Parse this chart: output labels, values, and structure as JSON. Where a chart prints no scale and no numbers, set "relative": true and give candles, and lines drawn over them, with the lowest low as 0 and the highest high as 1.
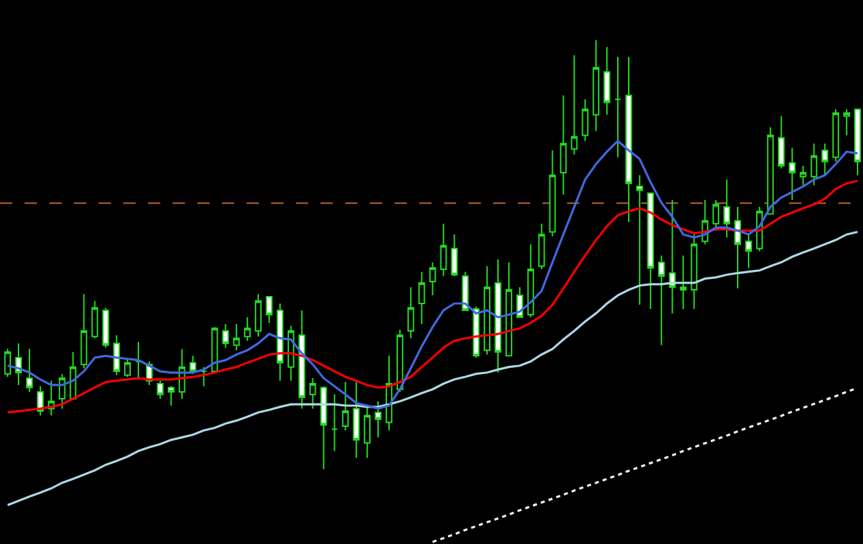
{
  "chart_data": {
    "type": "candlestick",
    "relative": true,
    "color": "#22dd22",
    "categories": [
      null,
      null,
      null,
      null,
      null,
      null,
      null,
      null,
      null,
      null,
      null,
      null,
      null,
      null,
      null,
      null,
      null,
      null,
      null,
      null,
      null,
      null,
      null,
      null,
      null,
      null,
      null,
      null,
      null,
      null,
      null,
      null,
      null,
      null,
      null,
      null,
      null,
      null,
      null,
      null,
      null,
      null,
      null,
      null,
      null,
      null,
      null,
      null,
      null,
      null,
      null,
      null,
      null,
      null,
      null,
      null,
      null,
      null,
      null,
      null,
      null,
      null,
      null,
      null,
      null,
      null,
      null,
      null,
      null,
      null,
      null,
      null,
      null,
      null,
      null,
      null,
      null,
      null,
      null
    ],
    "ohlc": [
      [
        0.222,
        0.28,
        0.215,
        0.273
      ],
      [
        0.26,
        0.293,
        0.196,
        0.225
      ],
      [
        0.212,
        0.28,
        0.18,
        0.19
      ],
      [
        0.18,
        0.193,
        0.125,
        0.135
      ],
      [
        0.141,
        0.206,
        0.125,
        0.158
      ],
      [
        0.164,
        0.222,
        0.141,
        0.212
      ],
      [
        0.164,
        0.273,
        0.161,
        0.238
      ],
      [
        0.244,
        0.408,
        0.235,
        0.322
      ],
      [
        0.309,
        0.392,
        0.305,
        0.376
      ],
      [
        0.37,
        0.376,
        0.283,
        0.289
      ],
      [
        0.293,
        0.312,
        0.219,
        0.228
      ],
      [
        0.219,
        0.257,
        0.215,
        0.248
      ],
      [
        0.251,
        0.296,
        0.212,
        0.251
      ],
      [
        0.244,
        0.251,
        0.196,
        0.206
      ],
      [
        0.199,
        0.206,
        0.164,
        0.174
      ],
      [
        0.19,
        0.193,
        0.148,
        0.18
      ],
      [
        0.18,
        0.28,
        0.164,
        0.238
      ],
      [
        0.248,
        0.264,
        0.222,
        0.228
      ],
      [
        0.228,
        0.238,
        0.193,
        0.228
      ],
      [
        0.228,
        0.331,
        0.225,
        0.328
      ],
      [
        0.322,
        0.338,
        0.283,
        0.293
      ],
      [
        0.289,
        0.338,
        0.277,
        0.305
      ],
      [
        0.309,
        0.354,
        0.299,
        0.328
      ],
      [
        0.322,
        0.408,
        0.309,
        0.392
      ],
      [
        0.402,
        0.402,
        0.341,
        0.36
      ],
      [
        0.37,
        0.386,
        0.206,
        0.248
      ],
      [
        0.238,
        0.334,
        0.206,
        0.322
      ],
      [
        0.312,
        0.37,
        0.141,
        0.167
      ],
      [
        0.174,
        0.212,
        0.141,
        0.199
      ],
      [
        0.19,
        0.193,
        0,
        0.103
      ],
      [
        0.093,
        0.174,
        0.042,
        0.093
      ],
      [
        0.1,
        0.203,
        0.09,
        0.135
      ],
      [
        0.141,
        0.203,
        0.026,
        0.068
      ],
      [
        0.061,
        0.145,
        0.026,
        0.125
      ],
      [
        0.132,
        0.158,
        0.074,
        0.116
      ],
      [
        0.109,
        0.264,
        0.09,
        0.199
      ],
      [
        0.186,
        0.325,
        0.18,
        0.312
      ],
      [
        0.322,
        0.424,
        0.305,
        0.376
      ],
      [
        0.386,
        0.46,
        0.338,
        0.434
      ],
      [
        0.437,
        0.482,
        0.405,
        0.469
      ],
      [
        0.466,
        0.572,
        0.45,
        0.521
      ],
      [
        0.514,
        0.547,
        0.45,
        0.453
      ],
      [
        0.45,
        0.46,
        0.37,
        0.37
      ],
      [
        0.373,
        0.379,
        0.26,
        0.264
      ],
      [
        0.277,
        0.473,
        0.267,
        0.424
      ],
      [
        0.434,
        0.489,
        0.225,
        0.273
      ],
      [
        0.264,
        0.482,
        0.264,
        0.418
      ],
      [
        0.405,
        0.424,
        0.354,
        0.354
      ],
      [
        0.36,
        0.524,
        0.354,
        0.466
      ],
      [
        0.473,
        0.572,
        0.466,
        0.547
      ],
      [
        0.553,
        0.743,
        0.543,
        0.685
      ],
      [
        0.691,
        0.871,
        0.64,
        0.759
      ],
      [
        0.746,
        0.965,
        0.733,
        0.775
      ],
      [
        0.778,
        0.862,
        0.765,
        0.839
      ],
      [
        0.826,
        1,
        0.788,
        0.936
      ],
      [
        0.926,
        0.984,
        0.826,
        0.855
      ],
      [
        0.862,
        0.961,
        0.727,
        0.862
      ],
      [
        0.871,
        0.961,
        0.576,
        0.666
      ],
      [
        0.659,
        0.685,
        0.383,
        0.65
      ],
      [
        0.643,
        0.643,
        0.373,
        0.469
      ],
      [
        0.482,
        0.498,
        0.289,
        0.45
      ],
      [
        0.457,
        0.627,
        0.363,
        0.424
      ],
      [
        0.424,
        0.498,
        0.373,
        0.418
      ],
      [
        0.418,
        0.547,
        0.373,
        0.524
      ],
      [
        0.531,
        0.627,
        0.524,
        0.579
      ],
      [
        0.572,
        0.627,
        0.556,
        0.617
      ],
      [
        0.611,
        0.675,
        0.54,
        0.572
      ],
      [
        0.579,
        0.611,
        0.421,
        0.524
      ],
      [
        0.531,
        0.547,
        0.469,
        0.508
      ],
      [
        0.514,
        0.611,
        0.508,
        0.601
      ],
      [
        0.595,
        0.797,
        0.595,
        0.778
      ],
      [
        0.772,
        0.823,
        0.701,
        0.707
      ],
      [
        0.714,
        0.749,
        0.627,
        0.691
      ],
      [
        0.682,
        0.707,
        0.662,
        0.691
      ],
      [
        0.682,
        0.759,
        0.662,
        0.73
      ],
      [
        0.743,
        0.759,
        0.685,
        0.717
      ],
      [
        0.727,
        0.839,
        0.717,
        0.83
      ],
      [
        0.823,
        0.839,
        0.778,
        0.83
      ],
      [
        0.839,
        0.839,
        0.685,
        0.717
      ]
    ],
    "series": [
      {
        "type": "line",
        "color": "#add8e6",
        "values": [
          -0.084,
          -0.074,
          -0.064,
          -0.055,
          -0.045,
          -0.032,
          -0.023,
          -0.013,
          -0.003,
          0.01,
          0.019,
          0.029,
          0.042,
          0.051,
          0.058,
          0.068,
          0.074,
          0.08,
          0.09,
          0.096,
          0.106,
          0.113,
          0.122,
          0.132,
          0.138,
          0.145,
          0.151,
          0.151,
          0.151,
          0.151,
          0.151,
          0.148,
          0.148,
          0.145,
          0.145,
          0.151,
          0.158,
          0.167,
          0.177,
          0.186,
          0.199,
          0.209,
          0.215,
          0.222,
          0.225,
          0.232,
          0.238,
          0.241,
          0.251,
          0.267,
          0.28,
          0.302,
          0.322,
          0.344,
          0.363,
          0.386,
          0.405,
          0.418,
          0.428,
          0.431,
          0.431,
          0.434,
          0.434,
          0.434,
          0.444,
          0.447,
          0.453,
          0.457,
          0.46,
          0.463,
          0.473,
          0.482,
          0.495,
          0.505,
          0.514,
          0.524,
          0.534,
          0.547,
          0.553
        ]
      },
      {
        "type": "line",
        "color": "#ff0000",
        "values": [
          0.132,
          0.135,
          0.138,
          0.141,
          0.145,
          0.151,
          0.164,
          0.177,
          0.19,
          0.203,
          0.206,
          0.209,
          0.212,
          0.209,
          0.209,
          0.209,
          0.212,
          0.215,
          0.219,
          0.225,
          0.232,
          0.238,
          0.248,
          0.257,
          0.267,
          0.27,
          0.27,
          0.264,
          0.254,
          0.241,
          0.228,
          0.215,
          0.206,
          0.196,
          0.19,
          0.193,
          0.203,
          0.215,
          0.238,
          0.26,
          0.283,
          0.299,
          0.305,
          0.309,
          0.312,
          0.315,
          0.322,
          0.328,
          0.341,
          0.357,
          0.383,
          0.421,
          0.46,
          0.498,
          0.534,
          0.566,
          0.592,
          0.601,
          0.608,
          0.598,
          0.582,
          0.569,
          0.559,
          0.55,
          0.553,
          0.559,
          0.559,
          0.556,
          0.556,
          0.556,
          0.572,
          0.588,
          0.598,
          0.608,
          0.617,
          0.63,
          0.653,
          0.666,
          0.672
        ]
      },
      {
        "type": "line",
        "color": "#4169e1",
        "values": [
          0.241,
          0.235,
          0.225,
          0.209,
          0.196,
          0.196,
          0.206,
          0.228,
          0.26,
          0.264,
          0.26,
          0.257,
          0.254,
          0.241,
          0.228,
          0.225,
          0.225,
          0.225,
          0.232,
          0.248,
          0.254,
          0.267,
          0.277,
          0.293,
          0.315,
          0.305,
          0.302,
          0.27,
          0.244,
          0.212,
          0.193,
          0.174,
          0.154,
          0.148,
          0.141,
          0.148,
          0.186,
          0.235,
          0.286,
          0.331,
          0.37,
          0.386,
          0.386,
          0.363,
          0.37,
          0.354,
          0.36,
          0.367,
          0.389,
          0.415,
          0.482,
          0.547,
          0.611,
          0.675,
          0.711,
          0.74,
          0.765,
          0.743,
          0.723,
          0.669,
          0.621,
          0.588,
          0.547,
          0.54,
          0.547,
          0.563,
          0.563,
          0.556,
          0.547,
          0.566,
          0.611,
          0.633,
          0.646,
          0.659,
          0.675,
          0.685,
          0.711,
          0.74,
          0.736
        ]
      },
      {
        "type": "line",
        "color": "#f0f0f0",
        "line_style": "dotted",
        "values": [
          null,
          null,
          null,
          null,
          null,
          null,
          null,
          null,
          null,
          null,
          null,
          null,
          null,
          null,
          null,
          null,
          null,
          null,
          null,
          null,
          null,
          null,
          null,
          null,
          null,
          null,
          null,
          null,
          null,
          null,
          null,
          null,
          null,
          null,
          null,
          null,
          null,
          null,
          null,
          -0.17,
          -0.161,
          -0.152,
          -0.142,
          -0.133,
          -0.124,
          -0.115,
          -0.106,
          -0.096,
          -0.087,
          -0.078,
          -0.069,
          -0.06,
          -0.05,
          -0.041,
          -0.032,
          -0.023,
          -0.014,
          -0.004,
          0.005,
          0.014,
          0.023,
          0.032,
          0.042,
          0.051,
          0.06,
          0.069,
          0.078,
          0.088,
          0.097,
          0.106,
          0.115,
          0.124,
          0.134,
          0.143,
          0.152,
          0.161,
          0.17,
          0.18,
          0.189
        ]
      }
    ],
    "ref_lines": [
      {
        "axis": "y",
        "value": 0.62,
        "color": "#c0652e",
        "line_style": "dashed"
      }
    ]
  }
}
